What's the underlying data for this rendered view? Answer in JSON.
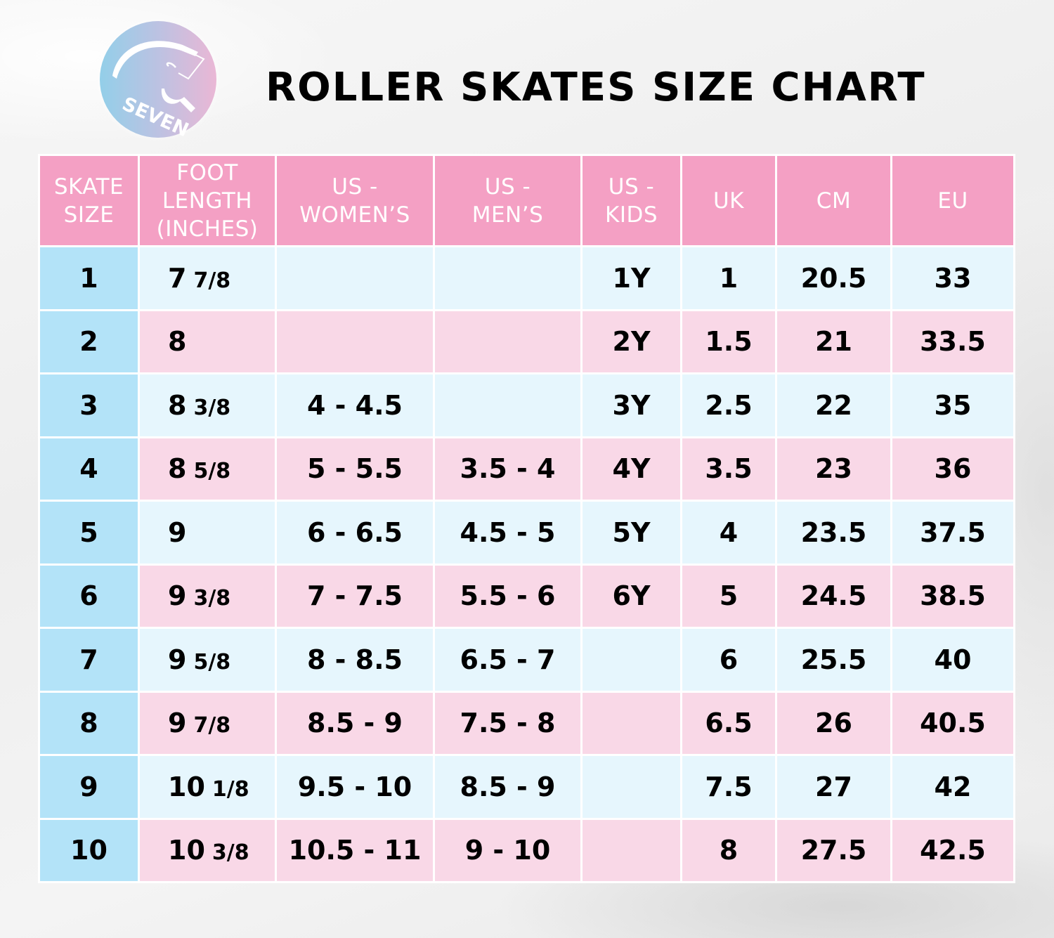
{
  "brand": {
    "logo_text": "SEVEN",
    "logo_icon": "seven-skate-circle-logo",
    "logo_gradient": [
      "#93cfe9",
      "#eab7d5"
    ]
  },
  "title": "ROLLER SKATES SIZE CHART",
  "colors": {
    "header_bg": "#f4a0c4",
    "header_text": "#ffffff",
    "skate_col_bg": "#b3e3f8",
    "row_light_bg": "#e6f6fd",
    "row_pink_bg": "#f9d8e7",
    "cell_text": "#000000"
  },
  "table": {
    "headers": [
      {
        "lines": [
          "SKATE",
          "SIZE"
        ]
      },
      {
        "lines": [
          "FOOT",
          "LENGTH",
          "(INCHES)"
        ]
      },
      {
        "lines": [
          "US -",
          "WOMEN’S"
        ]
      },
      {
        "lines": [
          "US -",
          "MEN’S"
        ]
      },
      {
        "lines": [
          "US -",
          "KIDS"
        ]
      },
      {
        "lines": [
          "UK"
        ]
      },
      {
        "lines": [
          "CM"
        ]
      },
      {
        "lines": [
          "EU"
        ]
      }
    ],
    "rows": [
      {
        "skate": "1",
        "foot_whole": "7",
        "foot_frac": "7/8",
        "women": "",
        "men": "",
        "kids": "1Y",
        "uk": "1",
        "cm": "20.5",
        "eu": "33"
      },
      {
        "skate": "2",
        "foot_whole": "8",
        "foot_frac": "",
        "women": "",
        "men": "",
        "kids": "2Y",
        "uk": "1.5",
        "cm": "21",
        "eu": "33.5"
      },
      {
        "skate": "3",
        "foot_whole": "8",
        "foot_frac": "3/8",
        "women": "4 - 4.5",
        "men": "",
        "kids": "3Y",
        "uk": "2.5",
        "cm": "22",
        "eu": "35"
      },
      {
        "skate": "4",
        "foot_whole": "8",
        "foot_frac": "5/8",
        "women": "5 - 5.5",
        "men": "3.5 - 4",
        "kids": "4Y",
        "uk": "3.5",
        "cm": "23",
        "eu": "36"
      },
      {
        "skate": "5",
        "foot_whole": "9",
        "foot_frac": "",
        "women": "6 - 6.5",
        "men": "4.5 - 5",
        "kids": "5Y",
        "uk": "4",
        "cm": "23.5",
        "eu": "37.5"
      },
      {
        "skate": "6",
        "foot_whole": "9",
        "foot_frac": "3/8",
        "women": "7 - 7.5",
        "men": "5.5 - 6",
        "kids": "6Y",
        "uk": "5",
        "cm": "24.5",
        "eu": "38.5"
      },
      {
        "skate": "7",
        "foot_whole": "9",
        "foot_frac": "5/8",
        "women": "8 - 8.5",
        "men": "6.5 - 7",
        "kids": "",
        "uk": "6",
        "cm": "25.5",
        "eu": "40"
      },
      {
        "skate": "8",
        "foot_whole": "9",
        "foot_frac": "7/8",
        "women": "8.5 - 9",
        "men": "7.5 - 8",
        "kids": "",
        "uk": "6.5",
        "cm": "26",
        "eu": "40.5"
      },
      {
        "skate": "9",
        "foot_whole": "10",
        "foot_frac": "1/8",
        "women": "9.5 - 10",
        "men": "8.5 - 9",
        "kids": "",
        "uk": "7.5",
        "cm": "27",
        "eu": "42"
      },
      {
        "skate": "10",
        "foot_whole": "10",
        "foot_frac": "3/8",
        "women": "10.5 - 11",
        "men": "9 - 10",
        "kids": "",
        "uk": "8",
        "cm": "27.5",
        "eu": "42.5"
      }
    ]
  },
  "chart_data": {
    "type": "table",
    "title": "ROLLER SKATES SIZE CHART",
    "columns": [
      "SKATE SIZE",
      "FOOT LENGTH (INCHES)",
      "US - WOMEN’S",
      "US - MEN’S",
      "US - KIDS",
      "UK",
      "CM",
      "EU"
    ],
    "rows": [
      [
        "1",
        "7 7/8",
        "",
        "",
        "1Y",
        "1",
        "20.5",
        "33"
      ],
      [
        "2",
        "8",
        "",
        "",
        "2Y",
        "1.5",
        "21",
        "33.5"
      ],
      [
        "3",
        "8 3/8",
        "4 - 4.5",
        "",
        "3Y",
        "2.5",
        "22",
        "35"
      ],
      [
        "4",
        "8 5/8",
        "5 - 5.5",
        "3.5 - 4",
        "4Y",
        "3.5",
        "23",
        "36"
      ],
      [
        "5",
        "9",
        "6 - 6.5",
        "4.5 - 5",
        "5Y",
        "4",
        "23.5",
        "37.5"
      ],
      [
        "6",
        "9 3/8",
        "7 - 7.5",
        "5.5 - 6",
        "6Y",
        "5",
        "24.5",
        "38.5"
      ],
      [
        "7",
        "9 5/8",
        "8 - 8.5",
        "6.5 - 7",
        "",
        "6",
        "25.5",
        "40"
      ],
      [
        "8",
        "9 7/8",
        "8.5 - 9",
        "7.5 - 8",
        "",
        "6.5",
        "26",
        "40.5"
      ],
      [
        "9",
        "10 1/8",
        "9.5 - 10",
        "8.5 - 9",
        "",
        "7.5",
        "27",
        "42"
      ],
      [
        "10",
        "10 3/8",
        "10.5 - 11",
        "9 - 10",
        "",
        "8",
        "27.5",
        "42.5"
      ]
    ]
  }
}
